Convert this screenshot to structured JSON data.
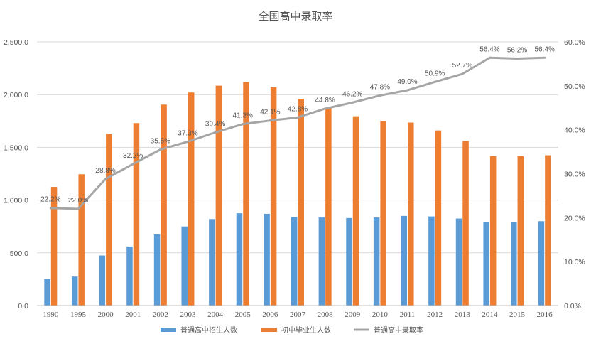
{
  "chart_data": {
    "type": "bar",
    "title": "全国高中录取率",
    "categories": [
      "1990",
      "1995",
      "2000",
      "2001",
      "2002",
      "2003",
      "2004",
      "2005",
      "2006",
      "2007",
      "2008",
      "2009",
      "2010",
      "2011",
      "2012",
      "2013",
      "2014",
      "2015",
      "2016"
    ],
    "series": [
      {
        "name": "普通高中招生人数",
        "type": "bar",
        "axis": "left",
        "color": "#5b9bd5",
        "values": [
          250,
          275,
          475,
          560,
          675,
          750,
          820,
          875,
          870,
          840,
          835,
          830,
          835,
          850,
          845,
          825,
          795,
          795,
          800
        ]
      },
      {
        "name": "初中毕业生人数",
        "type": "bar",
        "axis": "left",
        "color": "#ed7d31",
        "values": [
          1125,
          1245,
          1630,
          1730,
          1905,
          2020,
          2085,
          2120,
          2070,
          1960,
          1870,
          1795,
          1750,
          1735,
          1660,
          1560,
          1415,
          1415,
          1425
        ]
      },
      {
        "name": "普通高中录取率",
        "type": "line",
        "axis": "right",
        "color": "#a5a5a5",
        "values": [
          22.2,
          22.0,
          28.8,
          32.2,
          35.5,
          37.3,
          39.4,
          41.3,
          42.1,
          42.8,
          44.8,
          46.2,
          47.8,
          49.0,
          50.9,
          52.7,
          56.4,
          56.2,
          56.4
        ],
        "labels": [
          "22.2%",
          "22.0%",
          "28.8%",
          "32.2%",
          "35.5%",
          "37.3%",
          "39.4%",
          "41.3%",
          "42.1%",
          "42.8%",
          "44.8%",
          "46.2%",
          "47.8%",
          "49.0%",
          "50.9%",
          "52.7%",
          "56.4%",
          "56.2%",
          "56.4%"
        ]
      }
    ],
    "y_left": {
      "ylim": [
        0,
        2500
      ],
      "ticks": [
        0,
        500,
        1000,
        1500,
        2000,
        2500
      ],
      "tick_labels": [
        "0.0",
        "500.0",
        "1,000.0",
        "1,500.0",
        "2,000.0",
        "2,500.0"
      ]
    },
    "y_right": {
      "ylim": [
        0,
        60
      ],
      "ticks": [
        0,
        10,
        20,
        30,
        40,
        50,
        60
      ],
      "tick_labels": [
        "0.0%",
        "10.0%",
        "20.0%",
        "30.0%",
        "40.0%",
        "50.0%",
        "60.0%"
      ]
    },
    "legend_position": "bottom-center",
    "grid": true
  }
}
